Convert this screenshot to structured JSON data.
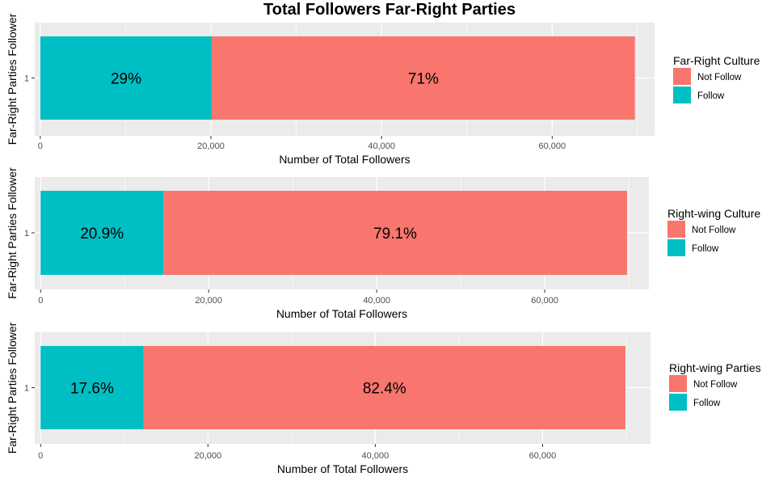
{
  "title": "Total Followers Far-Right Parties",
  "colors": {
    "follow": "#00BFC4",
    "not_follow": "#F8766D",
    "panel_bg": "#EBEBEB",
    "grid": "#FFFFFF"
  },
  "chart_data": [
    {
      "type": "bar",
      "orientation": "horizontal",
      "stacked": true,
      "categories": [
        "1"
      ],
      "ylabel": "Far-Right Parties Follower",
      "xlabel": "Number of Total Followers",
      "xlim": [
        -650,
        72000
      ],
      "xticks": [
        0,
        20000,
        40000,
        60000
      ],
      "xtick_labels": [
        "0",
        "20,000",
        "40,000",
        "60,000"
      ],
      "grid": true,
      "legend_title": "Far-Right Culture",
      "legend_position": "right",
      "series": [
        {
          "name": "Not Follow",
          "values": [
            49600
          ],
          "label": "71%",
          "color": "#F8766D"
        },
        {
          "name": "Follow",
          "values": [
            20100
          ],
          "label": "29%",
          "color": "#00BFC4"
        }
      ]
    },
    {
      "type": "bar",
      "orientation": "horizontal",
      "stacked": true,
      "categories": [
        "1"
      ],
      "ylabel": "Far-Right Parties Follower",
      "xlabel": "Number of Total Followers",
      "xlim": [
        -700,
        72400
      ],
      "xticks": [
        0,
        20000,
        40000,
        60000
      ],
      "xtick_labels": [
        "0",
        "20,000",
        "40,000",
        "60,000"
      ],
      "grid": true,
      "legend_title": "Right-wing Culture",
      "legend_position": "right",
      "series": [
        {
          "name": "Not Follow",
          "values": [
            55200
          ],
          "label": "79.1%",
          "color": "#F8766D"
        },
        {
          "name": "Follow",
          "values": [
            14600
          ],
          "label": "20.9%",
          "color": "#00BFC4"
        }
      ]
    },
    {
      "type": "bar",
      "orientation": "horizontal",
      "stacked": true,
      "categories": [
        "1"
      ],
      "ylabel": "Far-Right Parties Follower",
      "xlabel": "Number of Total Followers",
      "xlim": [
        -700,
        72900
      ],
      "xticks": [
        0,
        20000,
        40000,
        60000
      ],
      "xtick_labels": [
        "0",
        "20,000",
        "40,000",
        "60,000"
      ],
      "grid": true,
      "legend_title": "Right-wing Parties",
      "legend_position": "right",
      "series": [
        {
          "name": "Not Follow",
          "values": [
            57600
          ],
          "label": "82.4%",
          "color": "#F8766D"
        },
        {
          "name": "Follow",
          "values": [
            12300
          ],
          "label": "17.6%",
          "color": "#00BFC4"
        }
      ]
    }
  ]
}
